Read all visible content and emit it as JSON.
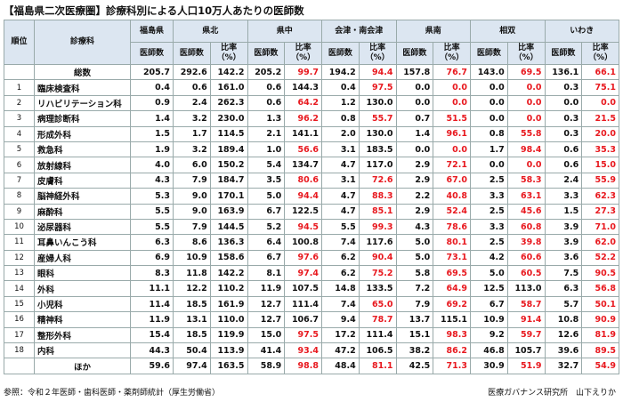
{
  "header": {
    "title": "【福島県二次医療圏】診療科別による人口10万人あたりの医師数"
  },
  "table": {
    "columns": {
      "rank": "順位",
      "dept": "診療科",
      "prefecture": "福島県",
      "regions": [
        "県北",
        "県中",
        "会津・南会津",
        "県南",
        "相双",
        "いわき"
      ]
    },
    "subheaders": {
      "doctors": "医師数",
      "ratio": [
        "比率",
        "（%）"
      ]
    },
    "highlight": {
      "color": "#e8191f",
      "below": 100
    },
    "rows": [
      {
        "name": "総数",
        "prefecture": "205.7",
        "regions": [
          [
            "292.6",
            "142.2"
          ],
          [
            "205.2",
            "99.7"
          ],
          [
            "194.2",
            "94.4"
          ],
          [
            "157.8",
            "76.7"
          ],
          [
            "143.0",
            "69.5"
          ],
          [
            "136.1",
            "66.1"
          ]
        ]
      },
      {
        "rank": "1",
        "name": "臨床検査科",
        "prefecture": "0.4",
        "regions": [
          [
            "0.6",
            "161.0"
          ],
          [
            "0.6",
            "144.3"
          ],
          [
            "0.4",
            "97.5"
          ],
          [
            "0.0",
            "0.0"
          ],
          [
            "0.0",
            "0.0"
          ],
          [
            "0.3",
            "75.1"
          ]
        ]
      },
      {
        "rank": "2",
        "name": "リハビリテーション科",
        "prefecture": "0.9",
        "regions": [
          [
            "2.4",
            "262.3"
          ],
          [
            "0.6",
            "64.2"
          ],
          [
            "1.2",
            "130.0"
          ],
          [
            "0.0",
            "0.0"
          ],
          [
            "0.0",
            "0.0"
          ],
          [
            "0.0",
            "0.0"
          ]
        ]
      },
      {
        "rank": "3",
        "name": "病理診断科",
        "prefecture": "1.4",
        "regions": [
          [
            "3.2",
            "230.0"
          ],
          [
            "1.3",
            "96.2"
          ],
          [
            "0.8",
            "55.7"
          ],
          [
            "0.7",
            "51.5"
          ],
          [
            "0.0",
            "0.0"
          ],
          [
            "0.3",
            "21.5"
          ]
        ]
      },
      {
        "rank": "4",
        "name": "形成外科",
        "prefecture": "1.5",
        "regions": [
          [
            "1.7",
            "114.5"
          ],
          [
            "2.1",
            "141.1"
          ],
          [
            "2.0",
            "130.0"
          ],
          [
            "1.4",
            "96.1"
          ],
          [
            "0.8",
            "55.8"
          ],
          [
            "0.3",
            "20.0"
          ]
        ]
      },
      {
        "rank": "5",
        "name": "救急科",
        "prefecture": "1.9",
        "regions": [
          [
            "3.2",
            "189.4"
          ],
          [
            "1.0",
            "56.6"
          ],
          [
            "3.1",
            "183.5"
          ],
          [
            "0.0",
            "0.0"
          ],
          [
            "1.7",
            "98.4"
          ],
          [
            "0.6",
            "35.3"
          ]
        ]
      },
      {
        "rank": "6",
        "name": "放射線科",
        "prefecture": "4.0",
        "regions": [
          [
            "6.0",
            "150.2"
          ],
          [
            "5.4",
            "134.7"
          ],
          [
            "4.7",
            "117.0"
          ],
          [
            "2.9",
            "72.1"
          ],
          [
            "0.0",
            "0.0"
          ],
          [
            "0.6",
            "15.0"
          ]
        ]
      },
      {
        "rank": "7",
        "name": "皮膚科",
        "prefecture": "4.3",
        "regions": [
          [
            "7.9",
            "184.7"
          ],
          [
            "3.5",
            "80.6"
          ],
          [
            "3.1",
            "72.6"
          ],
          [
            "2.9",
            "67.0"
          ],
          [
            "2.5",
            "58.3"
          ],
          [
            "2.4",
            "55.9"
          ]
        ]
      },
      {
        "rank": "8",
        "name": "脳神経外科",
        "prefecture": "5.3",
        "regions": [
          [
            "9.0",
            "170.1"
          ],
          [
            "5.0",
            "94.4"
          ],
          [
            "4.7",
            "88.3"
          ],
          [
            "2.2",
            "40.8"
          ],
          [
            "3.3",
            "63.1"
          ],
          [
            "3.3",
            "62.3"
          ]
        ]
      },
      {
        "rank": "9",
        "name": "麻酔科",
        "prefecture": "5.5",
        "regions": [
          [
            "9.0",
            "163.9"
          ],
          [
            "6.7",
            "122.5"
          ],
          [
            "4.7",
            "85.1"
          ],
          [
            "2.9",
            "52.4"
          ],
          [
            "2.5",
            "45.6"
          ],
          [
            "1.5",
            "27.3"
          ]
        ]
      },
      {
        "rank": "10",
        "name": "泌尿器科",
        "prefecture": "5.5",
        "regions": [
          [
            "7.9",
            "144.5"
          ],
          [
            "5.2",
            "94.5"
          ],
          [
            "5.5",
            "99.3"
          ],
          [
            "4.3",
            "78.6"
          ],
          [
            "3.3",
            "60.8"
          ],
          [
            "3.9",
            "71.0"
          ]
        ]
      },
      {
        "rank": "11",
        "name": "耳鼻いんこう科",
        "prefecture": "6.3",
        "regions": [
          [
            "8.6",
            "136.3"
          ],
          [
            "6.4",
            "100.8"
          ],
          [
            "7.4",
            "117.6"
          ],
          [
            "5.0",
            "80.1"
          ],
          [
            "2.5",
            "39.8"
          ],
          [
            "3.9",
            "62.0"
          ]
        ]
      },
      {
        "rank": "12",
        "name": "産婦人科",
        "prefecture": "6.9",
        "regions": [
          [
            "10.9",
            "158.6"
          ],
          [
            "6.7",
            "97.6"
          ],
          [
            "6.2",
            "90.4"
          ],
          [
            "5.0",
            "73.1"
          ],
          [
            "4.2",
            "60.6"
          ],
          [
            "3.6",
            "52.2"
          ]
        ]
      },
      {
        "rank": "13",
        "name": "眼科",
        "prefecture": "8.3",
        "regions": [
          [
            "11.8",
            "142.2"
          ],
          [
            "8.1",
            "97.4"
          ],
          [
            "6.2",
            "75.2"
          ],
          [
            "5.8",
            "69.5"
          ],
          [
            "5.0",
            "60.5"
          ],
          [
            "7.5",
            "90.5"
          ]
        ]
      },
      {
        "rank": "14",
        "name": "外科",
        "prefecture": "11.1",
        "regions": [
          [
            "12.2",
            "110.2"
          ],
          [
            "11.9",
            "107.5"
          ],
          [
            "14.8",
            "133.5"
          ],
          [
            "7.2",
            "64.9"
          ],
          [
            "12.5",
            "113.0"
          ],
          [
            "6.3",
            "56.8"
          ]
        ]
      },
      {
        "rank": "15",
        "name": "小児科",
        "prefecture": "11.4",
        "regions": [
          [
            "18.5",
            "161.9"
          ],
          [
            "12.7",
            "111.4"
          ],
          [
            "7.4",
            "65.0"
          ],
          [
            "7.9",
            "69.2"
          ],
          [
            "6.7",
            "58.7"
          ],
          [
            "5.7",
            "50.1"
          ]
        ]
      },
      {
        "rank": "16",
        "name": "精神科",
        "prefecture": "11.9",
        "regions": [
          [
            "13.1",
            "110.0"
          ],
          [
            "12.7",
            "106.7"
          ],
          [
            "9.4",
            "78.7"
          ],
          [
            "13.7",
            "115.1"
          ],
          [
            "10.9",
            "91.4"
          ],
          [
            "10.8",
            "90.9"
          ]
        ]
      },
      {
        "rank": "17",
        "name": "整形外科",
        "prefecture": "15.4",
        "regions": [
          [
            "18.5",
            "119.9"
          ],
          [
            "15.0",
            "97.5"
          ],
          [
            "17.2",
            "111.4"
          ],
          [
            "15.1",
            "98.3"
          ],
          [
            "9.2",
            "59.7"
          ],
          [
            "12.6",
            "81.9"
          ]
        ]
      },
      {
        "rank": "18",
        "name": "内科",
        "prefecture": "44.3",
        "regions": [
          [
            "50.4",
            "113.9"
          ],
          [
            "41.4",
            "93.4"
          ],
          [
            "47.2",
            "106.5"
          ],
          [
            "38.2",
            "86.2"
          ],
          [
            "46.8",
            "105.7"
          ],
          [
            "39.6",
            "89.5"
          ]
        ]
      },
      {
        "name": "ほか",
        "prefecture": "59.6",
        "regions": [
          [
            "97.4",
            "163.5"
          ],
          [
            "58.9",
            "98.8"
          ],
          [
            "48.4",
            "81.1"
          ],
          [
            "42.5",
            "71.3"
          ],
          [
            "30.9",
            "51.9"
          ],
          [
            "32.7",
            "54.9"
          ]
        ]
      }
    ]
  },
  "footer": {
    "source": "参照：令和２年医師・歯科医師・薬剤師統計（厚生労働省）",
    "author": "医療ガバナンス研究所　山下えりか"
  }
}
